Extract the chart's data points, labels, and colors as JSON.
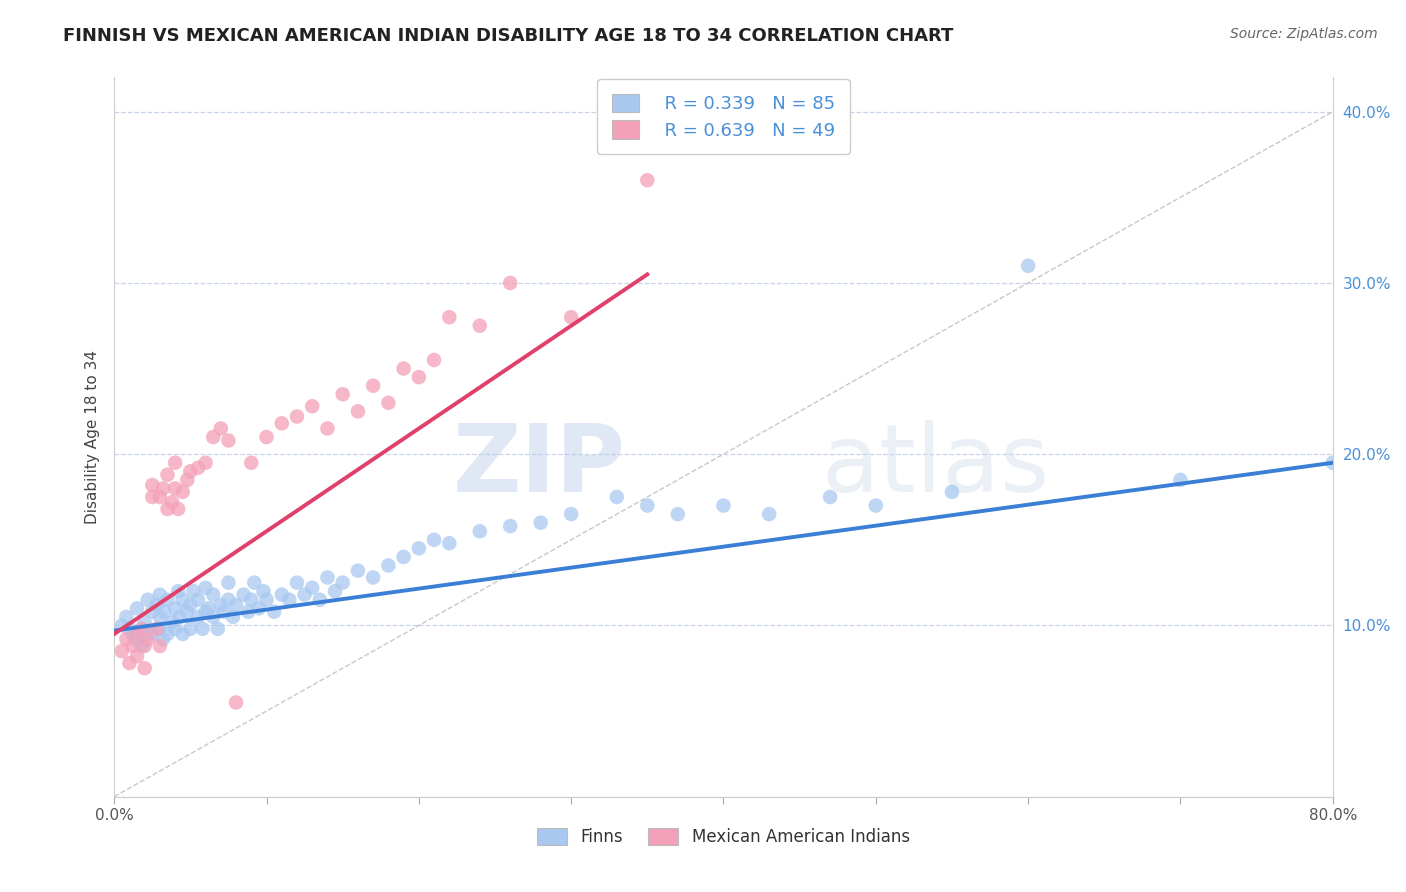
{
  "title": "FINNISH VS MEXICAN AMERICAN INDIAN DISABILITY AGE 18 TO 34 CORRELATION CHART",
  "source": "Source: ZipAtlas.com",
  "xlabel": "",
  "ylabel": "Disability Age 18 to 34",
  "xlim": [
    0.0,
    0.8
  ],
  "ylim": [
    0.0,
    0.42
  ],
  "xticks": [
    0.0,
    0.1,
    0.2,
    0.3,
    0.4,
    0.5,
    0.6,
    0.7,
    0.8
  ],
  "xticklabels": [
    "0.0%",
    "",
    "",
    "",
    "",
    "",
    "",
    "",
    "80.0%"
  ],
  "yticks": [
    0.0,
    0.1,
    0.2,
    0.3,
    0.4
  ],
  "yticklabels": [
    "",
    "10.0%",
    "20.0%",
    "30.0%",
    "40.0%"
  ],
  "finn_color": "#a8c8f0",
  "mexican_color": "#f4a0b8",
  "finn_line_color": "#3a7fd5",
  "mexican_line_color": "#e0406a",
  "ref_line_color": "#c8c8c8",
  "legend_R_finn": "R = 0.339",
  "legend_N_finn": "N = 85",
  "legend_R_mex": "R = 0.639",
  "legend_N_mex": "N = 49",
  "legend_label_finn": "Finns",
  "legend_label_mex": "Mexican American Indians",
  "watermark_zip": "ZIP",
  "watermark_atlas": "atlas",
  "background_color": "#ffffff",
  "finn_x": [
    0.005,
    0.008,
    0.01,
    0.012,
    0.015,
    0.015,
    0.018,
    0.02,
    0.02,
    0.022,
    0.025,
    0.025,
    0.028,
    0.03,
    0.03,
    0.03,
    0.032,
    0.033,
    0.035,
    0.035,
    0.038,
    0.04,
    0.04,
    0.042,
    0.043,
    0.045,
    0.045,
    0.048,
    0.05,
    0.05,
    0.052,
    0.055,
    0.055,
    0.058,
    0.06,
    0.06,
    0.062,
    0.065,
    0.065,
    0.068,
    0.07,
    0.072,
    0.075,
    0.075,
    0.078,
    0.08,
    0.085,
    0.088,
    0.09,
    0.092,
    0.095,
    0.098,
    0.1,
    0.105,
    0.11,
    0.115,
    0.12,
    0.125,
    0.13,
    0.135,
    0.14,
    0.145,
    0.15,
    0.16,
    0.17,
    0.18,
    0.19,
    0.2,
    0.21,
    0.22,
    0.24,
    0.26,
    0.28,
    0.3,
    0.33,
    0.35,
    0.37,
    0.4,
    0.43,
    0.47,
    0.5,
    0.55,
    0.6,
    0.7,
    0.8
  ],
  "finn_y": [
    0.1,
    0.105,
    0.098,
    0.095,
    0.11,
    0.092,
    0.088,
    0.102,
    0.095,
    0.115,
    0.108,
    0.095,
    0.112,
    0.098,
    0.105,
    0.118,
    0.092,
    0.108,
    0.095,
    0.115,
    0.102,
    0.098,
    0.11,
    0.12,
    0.105,
    0.095,
    0.115,
    0.108,
    0.098,
    0.112,
    0.12,
    0.105,
    0.115,
    0.098,
    0.108,
    0.122,
    0.11,
    0.105,
    0.118,
    0.098,
    0.112,
    0.108,
    0.115,
    0.125,
    0.105,
    0.112,
    0.118,
    0.108,
    0.115,
    0.125,
    0.11,
    0.12,
    0.115,
    0.108,
    0.118,
    0.115,
    0.125,
    0.118,
    0.122,
    0.115,
    0.128,
    0.12,
    0.125,
    0.132,
    0.128,
    0.135,
    0.14,
    0.145,
    0.15,
    0.148,
    0.155,
    0.158,
    0.16,
    0.165,
    0.175,
    0.17,
    0.165,
    0.17,
    0.165,
    0.175,
    0.17,
    0.178,
    0.31,
    0.185,
    0.195
  ],
  "mex_x": [
    0.005,
    0.008,
    0.01,
    0.012,
    0.015,
    0.015,
    0.018,
    0.02,
    0.02,
    0.022,
    0.025,
    0.025,
    0.028,
    0.03,
    0.03,
    0.032,
    0.035,
    0.035,
    0.038,
    0.04,
    0.04,
    0.042,
    0.045,
    0.048,
    0.05,
    0.055,
    0.06,
    0.065,
    0.07,
    0.075,
    0.08,
    0.09,
    0.1,
    0.11,
    0.12,
    0.13,
    0.14,
    0.15,
    0.16,
    0.17,
    0.18,
    0.19,
    0.2,
    0.21,
    0.22,
    0.24,
    0.26,
    0.3,
    0.35
  ],
  "mex_y": [
    0.085,
    0.092,
    0.078,
    0.088,
    0.095,
    0.082,
    0.098,
    0.088,
    0.075,
    0.092,
    0.175,
    0.182,
    0.098,
    0.175,
    0.088,
    0.18,
    0.168,
    0.188,
    0.172,
    0.18,
    0.195,
    0.168,
    0.178,
    0.185,
    0.19,
    0.192,
    0.195,
    0.21,
    0.215,
    0.208,
    0.055,
    0.195,
    0.21,
    0.218,
    0.222,
    0.228,
    0.215,
    0.235,
    0.225,
    0.24,
    0.23,
    0.25,
    0.245,
    0.255,
    0.28,
    0.275,
    0.3,
    0.28,
    0.36
  ],
  "finn_trend_x": [
    0.0,
    0.8
  ],
  "finn_trend_y": [
    0.097,
    0.195
  ],
  "mex_trend_x": [
    0.0,
    0.35
  ],
  "mex_trend_y": [
    0.095,
    0.305
  ],
  "ref_line_x": [
    0.0,
    0.8
  ],
  "ref_line_y": [
    0.0,
    0.4
  ]
}
